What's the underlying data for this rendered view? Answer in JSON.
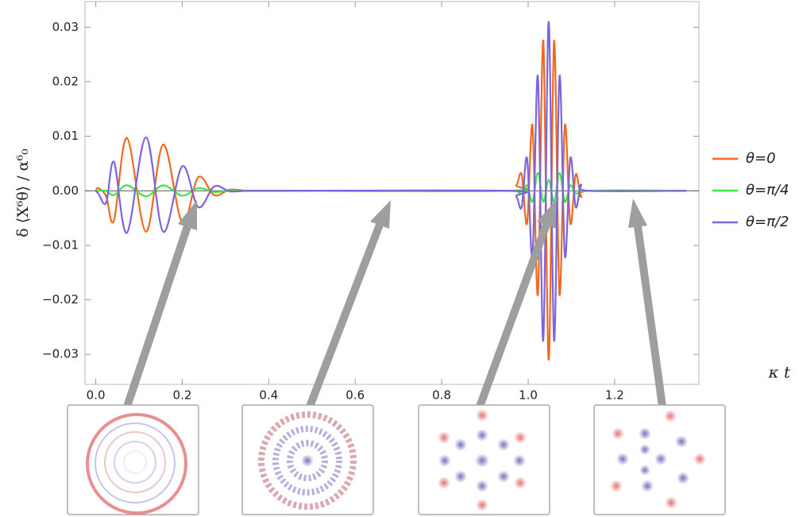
{
  "chart_data": {
    "type": "line",
    "x_label": "κ t",
    "y_label": "δ ⟨X⁶θ⟩ / α⁶₀",
    "x": [
      0,
      0.006,
      0.024,
      0.042,
      0.072,
      0.116,
      0.156,
      0.2,
      0.237,
      0.274,
      0.31,
      0.35,
      0.4,
      0.95,
      0.9725,
      0.985,
      0.9975,
      1.01,
      1.0225,
      1.035,
      1.0475,
      1.06,
      1.0725,
      1.085,
      1.0975,
      1.11,
      1.1225,
      1.14,
      1.366
    ],
    "series": [
      {
        "name": "θ=0",
        "color": "#f06a1e",
        "values": [
          0,
          0.0005,
          -0.001,
          -0.0055,
          0.0097,
          -0.0075,
          0.0085,
          -0.0058,
          0.0025,
          -0.0008,
          0.0002,
          0,
          0,
          0,
          0.001,
          0.003,
          -0.006,
          0.012,
          -0.019,
          0.0275,
          -0.031,
          0.0275,
          -0.019,
          0.012,
          -0.006,
          0.003,
          -0.001,
          0,
          0
        ]
      },
      {
        "name": "θ=π/4",
        "color": "#3ee53e",
        "values": [
          0,
          0,
          0,
          -0.0008,
          0.001,
          -0.001,
          0.001,
          -0.0009,
          0.0005,
          -0.0002,
          0,
          0,
          0,
          0,
          0,
          -0.0005,
          0.001,
          -0.002,
          0.0033,
          -0.002,
          0.002,
          -0.002,
          0.0033,
          -0.002,
          0.001,
          -0.0005,
          0,
          0,
          0
        ]
      },
      {
        "name": "θ=π/2",
        "color": "#7b64e0",
        "values": [
          0,
          -0.0005,
          -0.0022,
          0.0053,
          -0.0077,
          0.0098,
          -0.0075,
          0.0045,
          -0.003,
          0.0008,
          -0.0001,
          0,
          0,
          0,
          -0.001,
          -0.003,
          0.006,
          -0.012,
          0.021,
          -0.0275,
          0.031,
          -0.0275,
          0.021,
          -0.012,
          0.006,
          -0.003,
          0.001,
          0,
          0
        ]
      }
    ],
    "xlim": [
      -0.025,
      1.395
    ],
    "ylim": [
      -0.0355,
      0.0347
    ],
    "xticks": [
      {
        "value": 0,
        "label": "0.0"
      },
      0.2,
      0.4,
      0.6,
      0.8,
      {
        "value": 1,
        "label": "1.0"
      },
      1.2
    ],
    "yticks": [
      {
        "value": -0.03,
        "label": "−0.03"
      },
      {
        "value": -0.02,
        "label": "−0.02"
      },
      {
        "value": -0.01,
        "label": "−0.01"
      },
      {
        "value": 0,
        "label": "0.00"
      },
      0.01,
      0.02,
      0.03
    ],
    "legend": "right"
  }
}
